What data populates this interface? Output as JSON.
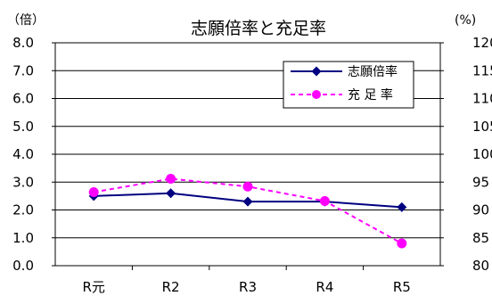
{
  "chart_data": {
    "type": "line",
    "title": "志願倍率と充足率",
    "left_axis": {
      "unit": "（倍）",
      "min": 0,
      "max": 8,
      "step": 1,
      "tick_labels": [
        "0.0",
        "1.0",
        "2.0",
        "3.0",
        "4.0",
        "5.0",
        "6.0",
        "7.0",
        "8.0"
      ]
    },
    "right_axis": {
      "unit": "(%)",
      "min": 80,
      "max": 120,
      "step": 5,
      "tick_labels": [
        "80",
        "85",
        "90",
        "95",
        "100",
        "105",
        "110",
        "115",
        "120"
      ]
    },
    "categories": [
      "R元",
      "R2",
      "R3",
      "R4",
      "R5"
    ],
    "series": [
      {
        "name": "志願倍率",
        "axis": "left",
        "values": [
          2.5,
          2.6,
          2.3,
          2.3,
          2.1
        ],
        "color": "#000080",
        "marker": "diamond",
        "dash": "solid"
      },
      {
        "name": "充 足 率",
        "axis": "right",
        "values": [
          93.2,
          95.6,
          94.2,
          91.6,
          84.0
        ],
        "color": "#FF00FF",
        "marker": "circle",
        "dash": "dashed"
      }
    ],
    "grid": true,
    "legend": "top-right"
  }
}
